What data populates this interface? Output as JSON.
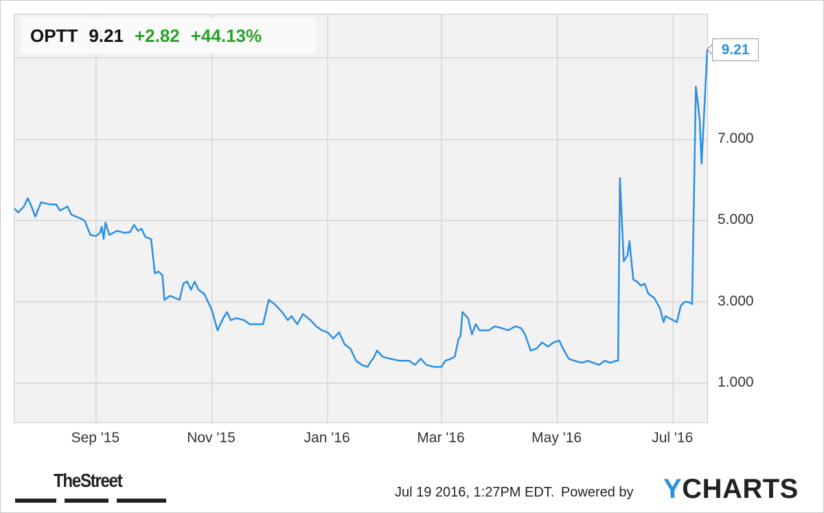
{
  "quote": {
    "ticker": "OPTT",
    "price": "9.21",
    "change": "+2.82",
    "change_pct": "+44.13%",
    "up_color": "#2aa12a"
  },
  "last_price_label": "9.21",
  "footer": {
    "timestamp": "Jul 19 2016, 1:27PM EDT.",
    "powered_by": "Powered by",
    "ycharts_brand_y": "Y",
    "ycharts_brand_rest": "CHARTS",
    "thestreet_brand": "TheStreet"
  },
  "colors": {
    "line": "#2b8fe3",
    "plot_bg": "#f2f2f2",
    "grid": "#d6d6d6"
  },
  "chart_data": {
    "type": "line",
    "title": "",
    "xlabel": "",
    "ylabel": "",
    "ylim": [
      0,
      9.2
    ],
    "xlim": [
      "2015-07-20",
      "2016-07-19"
    ],
    "grid": true,
    "y_ticks": [
      1,
      3,
      5,
      7
    ],
    "y_tick_labels": [
      "1.000",
      "3.000",
      "5.000",
      "7.000"
    ],
    "x_ticks": [
      "2015-09-01",
      "2015-11-01",
      "2016-01-01",
      "2016-03-01",
      "2016-05-01",
      "2016-07-01"
    ],
    "x_tick_labels": [
      "Sep '15",
      "Nov '15",
      "Jan '16",
      "Mar '16",
      "May '16",
      "Jul '16"
    ],
    "series": [
      {
        "ticker": "OPTT",
        "points": [
          [
            "2015-07-20",
            5.3
          ],
          [
            "2015-07-22",
            5.2
          ],
          [
            "2015-07-25",
            5.35
          ],
          [
            "2015-07-27",
            5.55
          ],
          [
            "2015-07-29",
            5.35
          ],
          [
            "2015-07-31",
            5.1
          ],
          [
            "2015-08-03",
            5.45
          ],
          [
            "2015-08-08",
            5.4
          ],
          [
            "2015-08-11",
            5.4
          ],
          [
            "2015-08-13",
            5.25
          ],
          [
            "2015-08-17",
            5.35
          ],
          [
            "2015-08-19",
            5.15
          ],
          [
            "2015-08-24",
            5.05
          ],
          [
            "2015-08-26",
            5.0
          ],
          [
            "2015-08-29",
            4.65
          ],
          [
            "2015-09-01",
            4.62
          ],
          [
            "2015-09-03",
            4.7
          ],
          [
            "2015-09-04",
            4.85
          ],
          [
            "2015-09-05",
            4.55
          ],
          [
            "2015-09-06",
            4.95
          ],
          [
            "2015-09-08",
            4.65
          ],
          [
            "2015-09-12",
            4.75
          ],
          [
            "2015-09-16",
            4.7
          ],
          [
            "2015-09-19",
            4.72
          ],
          [
            "2015-09-21",
            4.9
          ],
          [
            "2015-09-23",
            4.75
          ],
          [
            "2015-09-25",
            4.8
          ],
          [
            "2015-09-27",
            4.6
          ],
          [
            "2015-09-30",
            4.55
          ],
          [
            "2015-10-02",
            3.7
          ],
          [
            "2015-10-04",
            3.75
          ],
          [
            "2015-10-06",
            3.65
          ],
          [
            "2015-10-07",
            3.05
          ],
          [
            "2015-10-10",
            3.15
          ],
          [
            "2015-10-15",
            3.05
          ],
          [
            "2015-10-17",
            3.45
          ],
          [
            "2015-10-19",
            3.5
          ],
          [
            "2015-10-21",
            3.3
          ],
          [
            "2015-10-23",
            3.5
          ],
          [
            "2015-10-25",
            3.3
          ],
          [
            "2015-10-28",
            3.2
          ],
          [
            "2015-11-01",
            2.8
          ],
          [
            "2015-11-04",
            2.3
          ],
          [
            "2015-11-07",
            2.6
          ],
          [
            "2015-11-09",
            2.75
          ],
          [
            "2015-11-11",
            2.55
          ],
          [
            "2015-11-14",
            2.6
          ],
          [
            "2015-11-18",
            2.55
          ],
          [
            "2015-11-21",
            2.45
          ],
          [
            "2015-11-25",
            2.45
          ],
          [
            "2015-11-28",
            2.45
          ],
          [
            "2015-12-01",
            3.05
          ],
          [
            "2015-12-04",
            2.95
          ],
          [
            "2015-12-08",
            2.75
          ],
          [
            "2015-12-11",
            2.55
          ],
          [
            "2015-12-13",
            2.65
          ],
          [
            "2015-12-16",
            2.45
          ],
          [
            "2015-12-19",
            2.7
          ],
          [
            "2015-12-23",
            2.55
          ],
          [
            "2015-12-26",
            2.4
          ],
          [
            "2015-12-29",
            2.3
          ],
          [
            "2016-01-01",
            2.25
          ],
          [
            "2016-01-04",
            2.1
          ],
          [
            "2016-01-07",
            2.25
          ],
          [
            "2016-01-10",
            1.95
          ],
          [
            "2016-01-13",
            1.85
          ],
          [
            "2016-01-16",
            1.55
          ],
          [
            "2016-01-19",
            1.45
          ],
          [
            "2016-01-22",
            1.4
          ],
          [
            "2016-01-24",
            1.55
          ],
          [
            "2016-01-25",
            1.6
          ],
          [
            "2016-01-27",
            1.8
          ],
          [
            "2016-01-30",
            1.65
          ],
          [
            "2016-02-03",
            1.6
          ],
          [
            "2016-02-08",
            1.55
          ],
          [
            "2016-02-13",
            1.55
          ],
          [
            "2016-02-16",
            1.45
          ],
          [
            "2016-02-19",
            1.6
          ],
          [
            "2016-02-22",
            1.45
          ],
          [
            "2016-02-26",
            1.4
          ],
          [
            "2016-03-01",
            1.4
          ],
          [
            "2016-03-03",
            1.55
          ],
          [
            "2016-03-06",
            1.6
          ],
          [
            "2016-03-08",
            1.65
          ],
          [
            "2016-03-10",
            2.1
          ],
          [
            "2016-03-11",
            2.15
          ],
          [
            "2016-03-12",
            2.75
          ],
          [
            "2016-03-15",
            2.6
          ],
          [
            "2016-03-17",
            2.2
          ],
          [
            "2016-03-19",
            2.45
          ],
          [
            "2016-03-21",
            2.3
          ],
          [
            "2016-03-26",
            2.3
          ],
          [
            "2016-03-29",
            2.4
          ],
          [
            "2016-04-02",
            2.35
          ],
          [
            "2016-04-05",
            2.3
          ],
          [
            "2016-04-09",
            2.4
          ],
          [
            "2016-04-12",
            2.35
          ],
          [
            "2016-04-14",
            2.2
          ],
          [
            "2016-04-17",
            1.8
          ],
          [
            "2016-04-20",
            1.85
          ],
          [
            "2016-04-23",
            2.0
          ],
          [
            "2016-04-26",
            1.9
          ],
          [
            "2016-04-29",
            2.0
          ],
          [
            "2016-05-02",
            2.05
          ],
          [
            "2016-05-04",
            1.85
          ],
          [
            "2016-05-07",
            1.6
          ],
          [
            "2016-05-10",
            1.55
          ],
          [
            "2016-05-14",
            1.5
          ],
          [
            "2016-05-17",
            1.55
          ],
          [
            "2016-05-20",
            1.5
          ],
          [
            "2016-05-23",
            1.45
          ],
          [
            "2016-05-26",
            1.55
          ],
          [
            "2016-05-29",
            1.5
          ],
          [
            "2016-06-01",
            1.55
          ],
          [
            "2016-06-02",
            1.55
          ],
          [
            "2016-06-03",
            6.05
          ],
          [
            "2016-06-05",
            4.0
          ],
          [
            "2016-06-07",
            4.15
          ],
          [
            "2016-06-08",
            4.5
          ],
          [
            "2016-06-10",
            3.55
          ],
          [
            "2016-06-12",
            3.5
          ],
          [
            "2016-06-14",
            3.4
          ],
          [
            "2016-06-16",
            3.45
          ],
          [
            "2016-06-18",
            3.2
          ],
          [
            "2016-06-21",
            3.1
          ],
          [
            "2016-06-24",
            2.85
          ],
          [
            "2016-06-26",
            2.5
          ],
          [
            "2016-06-27",
            2.65
          ],
          [
            "2016-07-01",
            2.55
          ],
          [
            "2016-07-03",
            2.5
          ],
          [
            "2016-07-05",
            2.9
          ],
          [
            "2016-07-07",
            3.0
          ],
          [
            "2016-07-09",
            3.0
          ],
          [
            "2016-07-11",
            2.95
          ],
          [
            "2016-07-13",
            8.3
          ],
          [
            "2016-07-15",
            7.5
          ],
          [
            "2016-07-16",
            6.4
          ],
          [
            "2016-07-19",
            9.21
          ]
        ]
      }
    ]
  }
}
